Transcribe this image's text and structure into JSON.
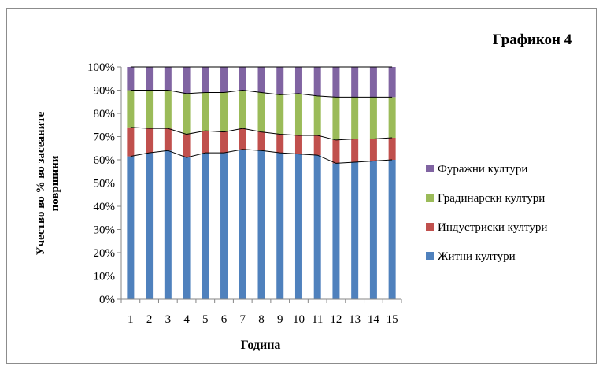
{
  "chart_data": {
    "type": "bar",
    "stacked": true,
    "title": "Графикон 4",
    "xlabel": "Година",
    "ylabel_lines": [
      "Учество во % во засеаните",
      "површини"
    ],
    "categories": [
      "1",
      "2",
      "3",
      "4",
      "5",
      "6",
      "7",
      "8",
      "9",
      "10",
      "11",
      "12",
      "13",
      "14",
      "15"
    ],
    "ylim": [
      0,
      100
    ],
    "yticks": [
      "0%",
      "10%",
      "20%",
      "30%",
      "40%",
      "50%",
      "60%",
      "70%",
      "80%",
      "90%",
      "100%"
    ],
    "grid": false,
    "legend_position": "right",
    "series": [
      {
        "name": "Житни култури",
        "color": "#4f81bd",
        "values": [
          61.5,
          63,
          64,
          61,
          63,
          63,
          64.5,
          64,
          63,
          62.5,
          62,
          58.5,
          59,
          59.5,
          60
        ]
      },
      {
        "name": "Индустриски култури",
        "color": "#c0504d",
        "values": [
          12.5,
          10.5,
          9.5,
          10,
          9.5,
          9,
          9,
          8,
          8,
          8,
          8.5,
          10,
          10,
          9.5,
          9.5
        ]
      },
      {
        "name": "Градинарски култури",
        "color": "#9bbb59",
        "values": [
          16,
          16.5,
          16.5,
          17.5,
          16.5,
          17,
          16.5,
          17,
          17,
          18,
          17,
          18.5,
          18,
          18,
          17.5
        ]
      },
      {
        "name": "Фуражни култури",
        "color": "#8064a2",
        "values": [
          10,
          10,
          10,
          11.5,
          11,
          11,
          10,
          11,
          12,
          11.5,
          12.5,
          13,
          13,
          13,
          13
        ]
      }
    ]
  }
}
